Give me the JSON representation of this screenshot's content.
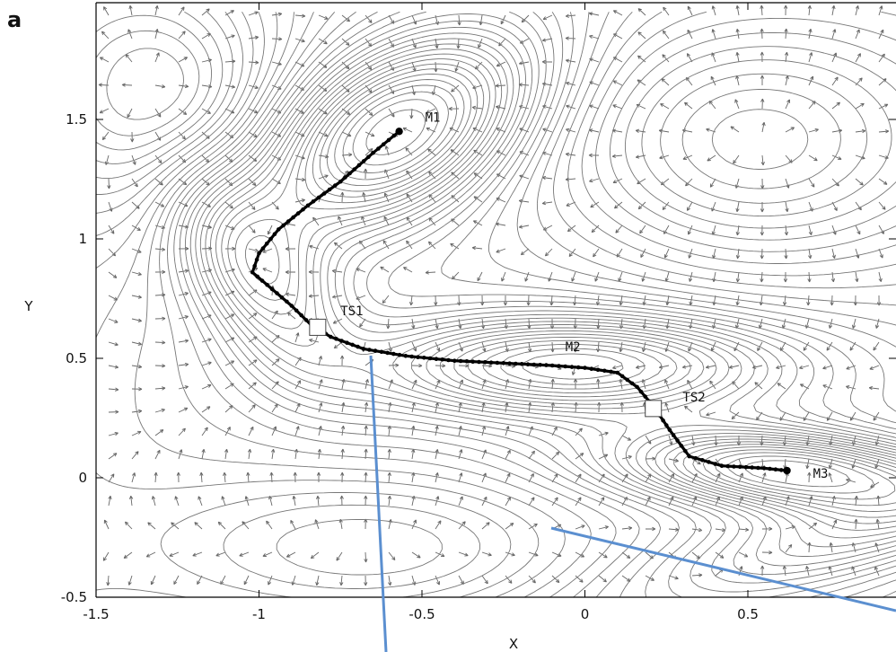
{
  "chart_data": {
    "type": "contour",
    "panel_label": "a",
    "xlabel": "X",
    "ylabel": "Y",
    "xlim": [
      -1.5,
      1.0
    ],
    "ylim": [
      -0.5,
      1.95
    ],
    "x_ticks": [
      -1.5,
      -1,
      -0.5,
      0,
      0.5
    ],
    "x_tick_labels": [
      "-1.5",
      "-1",
      "-0.5",
      "0",
      "0.5"
    ],
    "y_ticks": [
      -0.5,
      0,
      0.5,
      1,
      1.5
    ],
    "y_tick_labels": [
      "-0.5",
      "0",
      "0.5",
      "1",
      "1.5"
    ],
    "annotations": [
      {
        "text": "M1",
        "x": -0.49,
        "y": 1.49
      },
      {
        "text": "TS1",
        "x": -0.75,
        "y": 0.68
      },
      {
        "text": "M2",
        "x": -0.06,
        "y": 0.53
      },
      {
        "text": "TS2",
        "x": 0.3,
        "y": 0.32
      },
      {
        "text": "M3",
        "x": 0.7,
        "y": 0.0
      }
    ],
    "transition_states": [
      {
        "name": "TS1",
        "x": -0.82,
        "y": 0.63
      },
      {
        "name": "TS2",
        "x": 0.21,
        "y": 0.29
      }
    ],
    "minimum_energy_path": [
      {
        "x": -0.57,
        "y": 1.45
      },
      {
        "x": -0.65,
        "y": 1.36
      },
      {
        "x": -0.75,
        "y": 1.24
      },
      {
        "x": -0.85,
        "y": 1.14
      },
      {
        "x": -0.94,
        "y": 1.04
      },
      {
        "x": -1.0,
        "y": 0.94
      },
      {
        "x": -1.02,
        "y": 0.86
      },
      {
        "x": -0.96,
        "y": 0.79
      },
      {
        "x": -0.9,
        "y": 0.72
      },
      {
        "x": -0.84,
        "y": 0.64
      },
      {
        "x": -0.78,
        "y": 0.59
      },
      {
        "x": -0.68,
        "y": 0.54
      },
      {
        "x": -0.55,
        "y": 0.51
      },
      {
        "x": -0.4,
        "y": 0.49
      },
      {
        "x": -0.25,
        "y": 0.48
      },
      {
        "x": -0.1,
        "y": 0.47
      },
      {
        "x": 0.0,
        "y": 0.46
      },
      {
        "x": 0.1,
        "y": 0.44
      },
      {
        "x": 0.16,
        "y": 0.38
      },
      {
        "x": 0.21,
        "y": 0.3
      },
      {
        "x": 0.26,
        "y": 0.2
      },
      {
        "x": 0.32,
        "y": 0.09
      },
      {
        "x": 0.42,
        "y": 0.05
      },
      {
        "x": 0.55,
        "y": 0.04
      },
      {
        "x": 0.62,
        "y": 0.03
      }
    ],
    "minima": [
      {
        "name": "M1",
        "x": -0.58,
        "y": 1.45
      },
      {
        "name": "M2",
        "x": -0.03,
        "y": 0.47
      },
      {
        "name": "M3",
        "x": 0.62,
        "y": 0.03
      }
    ],
    "grid": false,
    "legend": "none"
  },
  "colors": {
    "contour": "#777777",
    "arrow": "#666666",
    "path": "#000000",
    "callout": "#5b8fd0"
  }
}
